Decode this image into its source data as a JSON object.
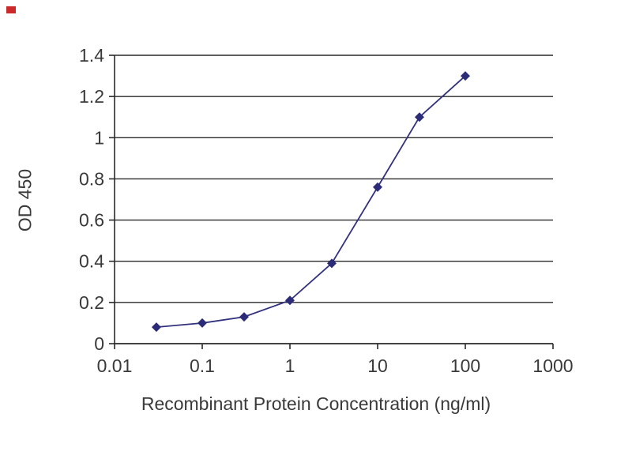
{
  "chart_data": {
    "type": "line",
    "x": [
      0.03,
      0.1,
      0.3,
      1,
      3,
      10,
      30,
      100
    ],
    "y": [
      0.08,
      0.1,
      0.13,
      0.21,
      0.39,
      0.76,
      1.1,
      1.3
    ],
    "title": "",
    "xlabel": "Recombinant Protein Concentration (ng/ml)",
    "ylabel": "OD 450",
    "xscale": "log",
    "xlim": [
      0.01,
      1000
    ],
    "ylim": [
      0,
      1.4
    ],
    "xticks": [
      0.01,
      0.1,
      1,
      10,
      100,
      1000
    ],
    "xtick_labels": [
      "0.01",
      "0.1",
      "1",
      "10",
      "100",
      "1000"
    ],
    "yticks": [
      0,
      0.2,
      0.4,
      0.6,
      0.8,
      1,
      1.2,
      1.4
    ],
    "ytick_labels": [
      "0",
      "0.2",
      "0.4",
      "0.6",
      "0.8",
      "1",
      "1.2",
      "1.4"
    ],
    "grid": "horizontal",
    "legend_position": "none",
    "line_color": "#31317e",
    "marker": "diamond",
    "marker_color": "#2b2b78",
    "axis_color": "#2a2a2a",
    "grid_color": "#2a2a2a",
    "background": "#ffffff"
  }
}
